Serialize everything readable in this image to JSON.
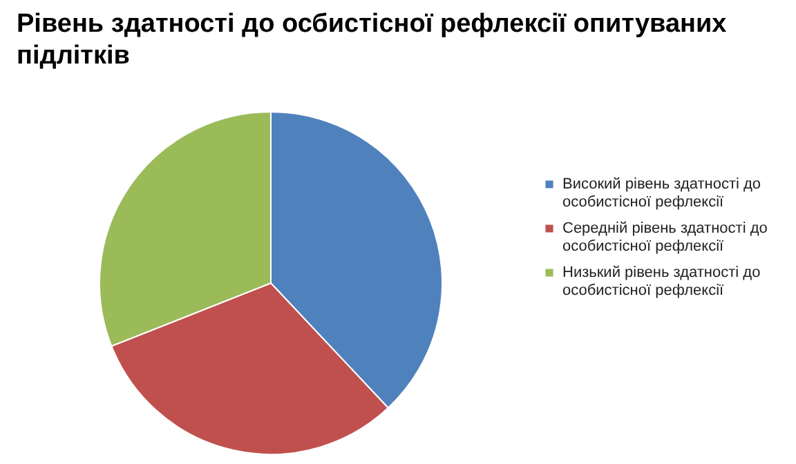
{
  "chart_data": {
    "type": "pie",
    "title": "Рівень здатності до осбистісної рефлексії опитуваних підлітків",
    "categories": [
      "Високий рівень здатності до особистісної рефлексії",
      "Середній рівень здатності до особистісної рефлексії",
      "Низький рівень здатності до особистісної рефлексії"
    ],
    "values": [
      38,
      31,
      31
    ],
    "colors": [
      "#4f81bd",
      "#c0504d",
      "#9bbb59"
    ],
    "legend": "right"
  }
}
